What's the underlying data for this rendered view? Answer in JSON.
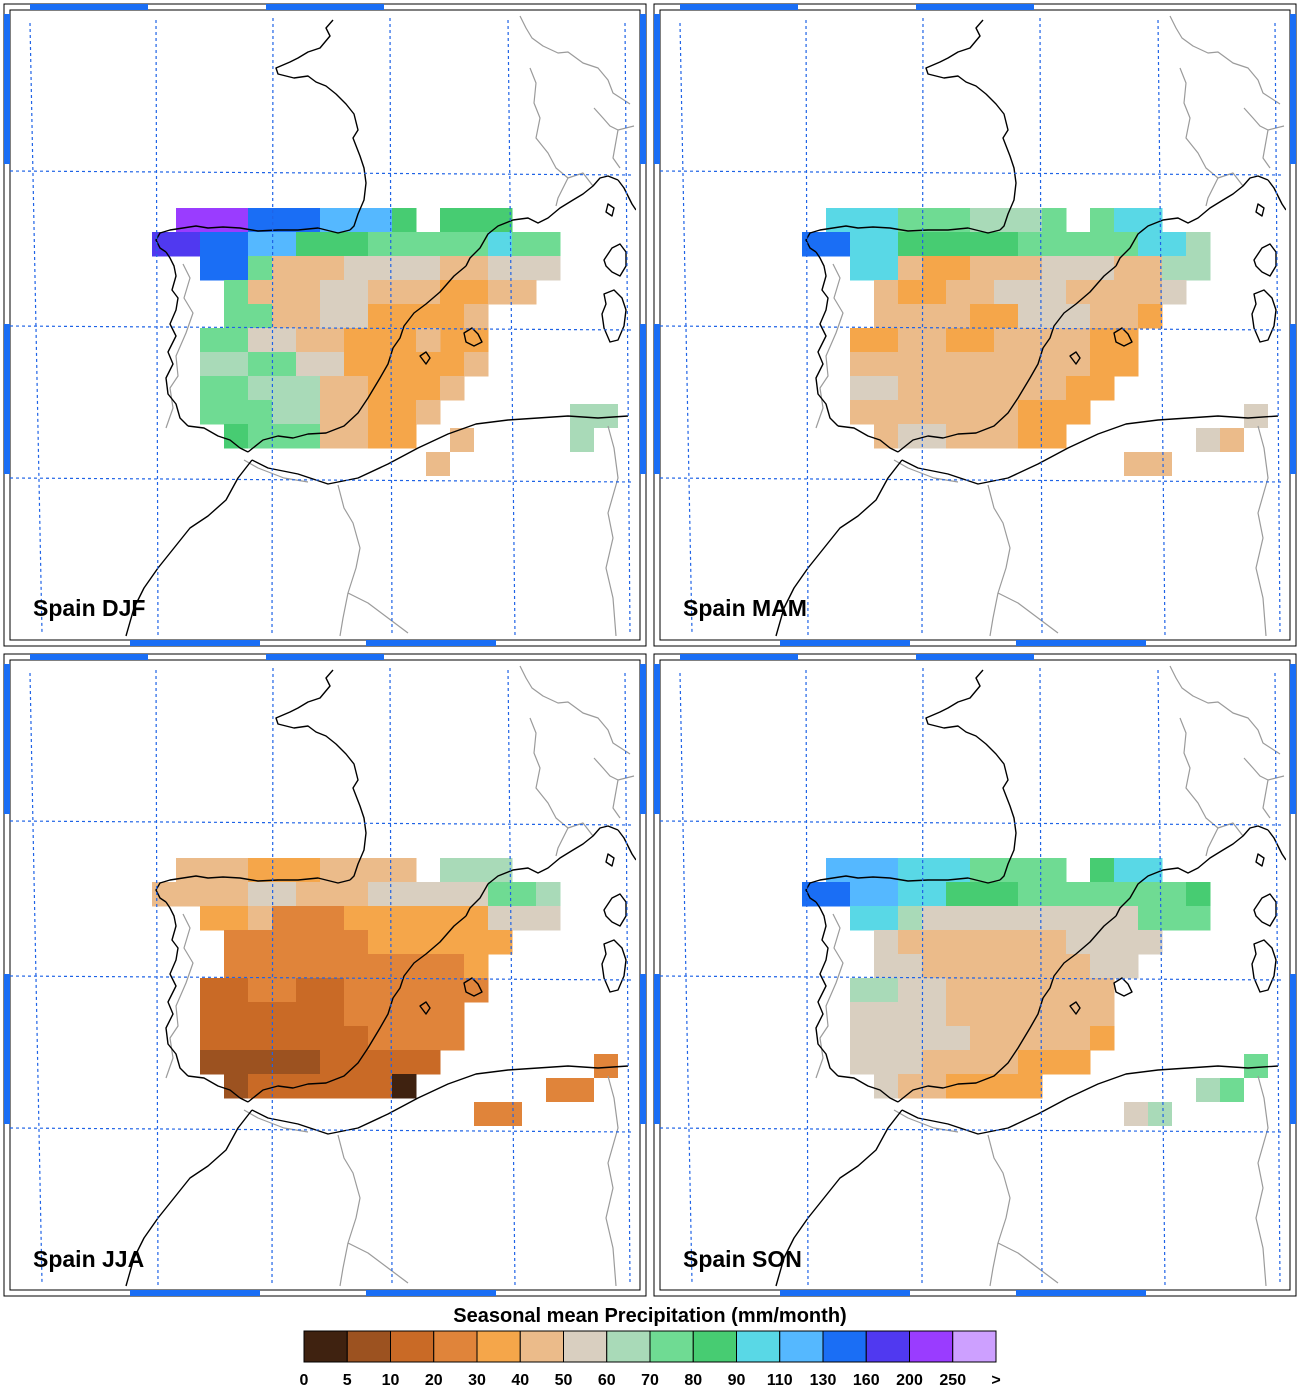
{
  "panels": [
    {
      "label": "Spain DJF",
      "season": "DJF"
    },
    {
      "label": "Spain MAM",
      "season": "MAM"
    },
    {
      "label": "Spain JJA",
      "season": "JJA"
    },
    {
      "label": "Spain SON",
      "season": "SON"
    }
  ],
  "colorbar": {
    "title": "Seasonal mean Precipitation (mm/month)",
    "ticks": [
      "0",
      "5",
      "10",
      "20",
      "30",
      "40",
      "50",
      "60",
      "70",
      "80",
      "90",
      "110",
      "130",
      "160",
      "200",
      "250",
      ">"
    ],
    "colors": [
      "#3f2210",
      "#9c5220",
      "#c96a26",
      "#e0843a",
      "#f5a64a",
      "#ebbb8a",
      "#d9cfc0",
      "#a9dab8",
      "#6fdb93",
      "#47cc72",
      "#59d8e6",
      "#55b8ff",
      "#1a6ef5",
      "#5039f0",
      "#9a3cff",
      "#cda0ff"
    ]
  },
  "colors": {
    "coastline": "#000000",
    "borders": "#999999",
    "grid": "#1f63e6",
    "frame_accent": "#1a6ef5"
  }
}
